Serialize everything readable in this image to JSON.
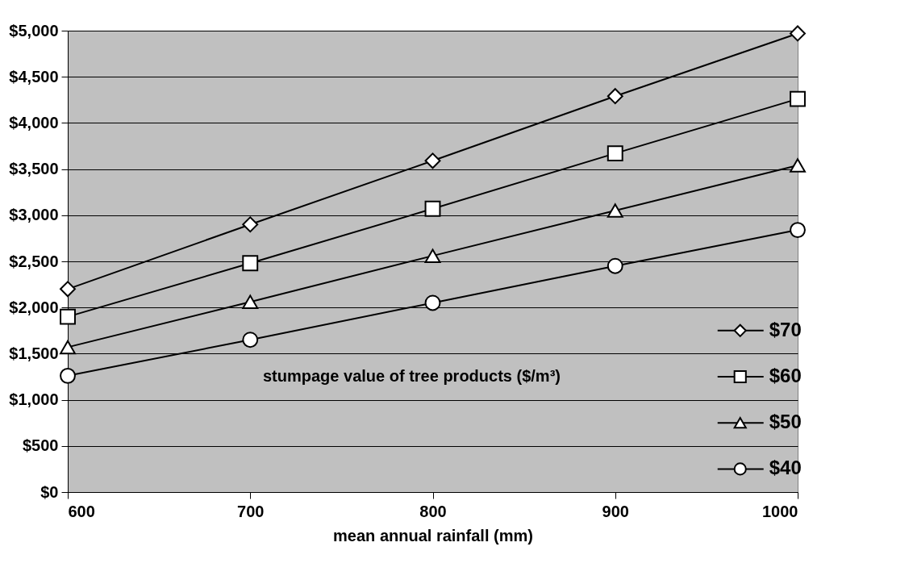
{
  "chart_data": {
    "type": "line",
    "xlabel": "mean annual rainfall (mm)",
    "legend_title": "stumpage value of tree products ($/m³)",
    "x": [
      600,
      700,
      800,
      900,
      1000
    ],
    "series": [
      {
        "name": "$70",
        "color": "#000000",
        "marker": "diamond",
        "values": [
          2200,
          2900,
          3590,
          4290,
          4970
        ]
      },
      {
        "name": "$60",
        "color": "#000000",
        "marker": "square",
        "values": [
          1900,
          2480,
          3070,
          3670,
          4260
        ]
      },
      {
        "name": "$50",
        "color": "#000000",
        "marker": "triangle",
        "values": [
          1570,
          2060,
          2560,
          3050,
          3540
        ]
      },
      {
        "name": "$40",
        "color": "#000000",
        "marker": "circle",
        "values": [
          1260,
          1650,
          2050,
          2450,
          2840
        ]
      }
    ],
    "xlim": [
      600,
      1000
    ],
    "xticks": [
      600,
      700,
      800,
      900,
      1000
    ],
    "ylim": [
      0,
      5000
    ],
    "yticks": [
      {
        "value": 0,
        "label": "$0"
      },
      {
        "value": 500,
        "label": "$500"
      },
      {
        "value": 1000,
        "label": "$1,000"
      },
      {
        "value": 1500,
        "label": "$1,500"
      },
      {
        "value": 2000,
        "label": "$2,000"
      },
      {
        "value": 2500,
        "label": "$2,500"
      },
      {
        "value": 3000,
        "label": "$3,000"
      },
      {
        "value": 3500,
        "label": "$3,500"
      },
      {
        "value": 4000,
        "label": "$4,000"
      },
      {
        "value": 4500,
        "label": "$4,500"
      },
      {
        "value": 5000,
        "label": "$5,000"
      }
    ],
    "grid": "y",
    "legend": "bottom right",
    "line_style": "solid"
  }
}
